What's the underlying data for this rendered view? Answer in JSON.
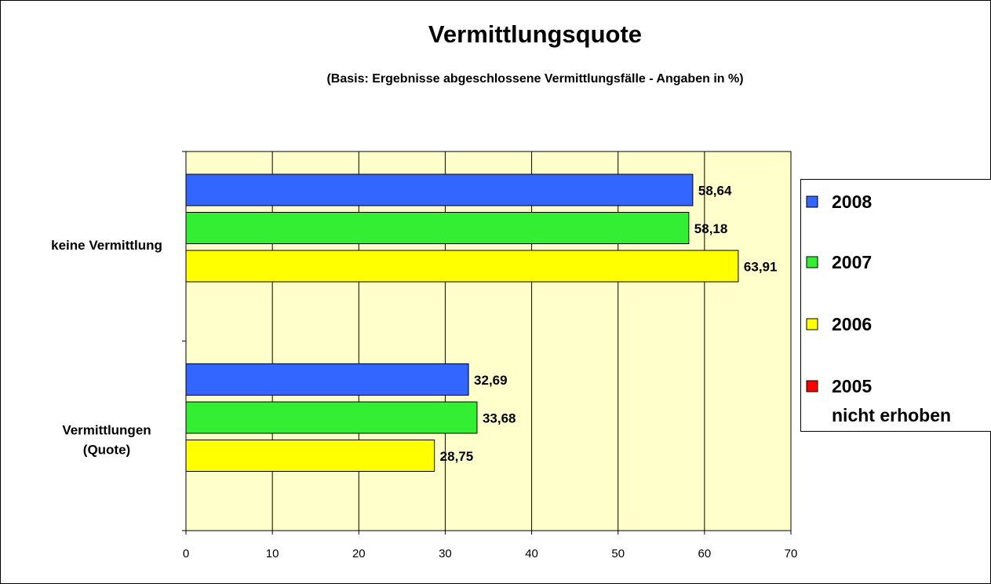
{
  "chart_data": {
    "type": "hbar",
    "title": "Vermittlungsquote",
    "subtitle": "(Basis: Ergebnisse abgeschlossene Vermittlungsfälle - Angaben in %)",
    "categories": [
      "keine Vermittlung",
      "Vermittlungen\n(Quote)"
    ],
    "series": [
      {
        "name": "2008",
        "color": "#3366ff",
        "values": [
          58.64,
          32.69
        ],
        "value_labels": [
          "58,64",
          "32,69"
        ]
      },
      {
        "name": "2007",
        "color": "#33ee33",
        "values": [
          58.18,
          33.68
        ],
        "value_labels": [
          "58,18",
          "33,68"
        ]
      },
      {
        "name": "2006",
        "color": "#ffff00",
        "values": [
          63.91,
          28.75
        ],
        "value_labels": [
          "63,91",
          "28,75"
        ]
      },
      {
        "name": "2005\nnicht erhoben",
        "color": "#ff0000",
        "values": [
          null,
          null
        ]
      }
    ],
    "xlim": [
      0,
      70
    ],
    "xticks": [
      0,
      10,
      20,
      30,
      40,
      50,
      60,
      70
    ],
    "grid": true,
    "plot_background": "#ffffcc",
    "legend": "right"
  }
}
